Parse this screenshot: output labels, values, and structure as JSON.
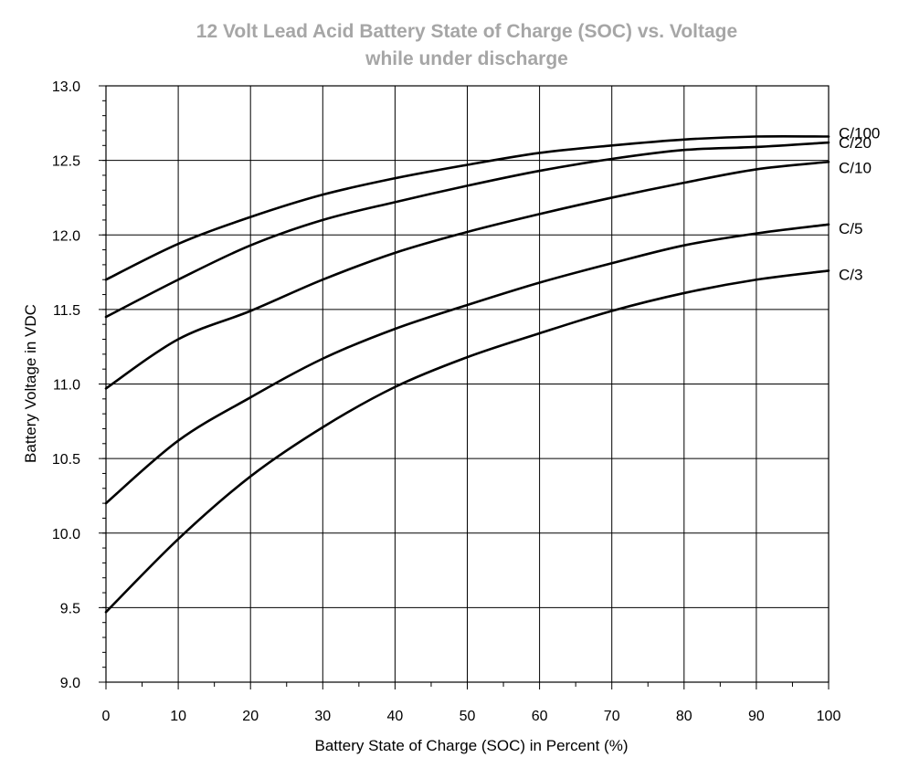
{
  "chart_data": {
    "type": "line",
    "title": "12 Volt Lead Acid Battery State of Charge (SOC) vs. Voltage",
    "subtitle": "while under discharge",
    "xlabel": "Battery State of Charge (SOC) in Percent (%)",
    "ylabel": "Battery Voltage in VDC",
    "xlim": [
      0,
      100
    ],
    "ylim": [
      9.0,
      13.0
    ],
    "xticks": [
      "0",
      "10",
      "20",
      "30",
      "40",
      "50",
      "60",
      "70",
      "80",
      "90",
      "100"
    ],
    "yticks": [
      "9.0",
      "9.5",
      "10.0",
      "10.5",
      "11.0",
      "11.5",
      "12.0",
      "12.5",
      "13.0"
    ],
    "grid": true,
    "legend": "inline-right",
    "line_color": "#000000",
    "title_color": "#a6a6a6",
    "x": [
      0,
      10,
      20,
      30,
      40,
      50,
      60,
      70,
      80,
      90,
      100
    ],
    "series": [
      {
        "name": "C/100",
        "values": [
          11.7,
          11.94,
          12.12,
          12.27,
          12.38,
          12.47,
          12.55,
          12.6,
          12.64,
          12.66,
          12.66
        ]
      },
      {
        "name": "C/20",
        "values": [
          11.45,
          11.7,
          11.93,
          12.1,
          12.22,
          12.33,
          12.43,
          12.51,
          12.57,
          12.59,
          12.62
        ]
      },
      {
        "name": "C/10",
        "values": [
          10.97,
          11.3,
          11.49,
          11.7,
          11.88,
          12.02,
          12.14,
          12.25,
          12.35,
          12.44,
          12.49
        ]
      },
      {
        "name": "C/5",
        "values": [
          10.2,
          10.62,
          10.91,
          11.17,
          11.37,
          11.53,
          11.68,
          11.81,
          11.93,
          12.01,
          12.07
        ]
      },
      {
        "name": "C/3",
        "values": [
          9.47,
          9.96,
          10.38,
          10.71,
          10.98,
          11.18,
          11.34,
          11.49,
          11.61,
          11.7,
          11.76
        ]
      }
    ]
  }
}
